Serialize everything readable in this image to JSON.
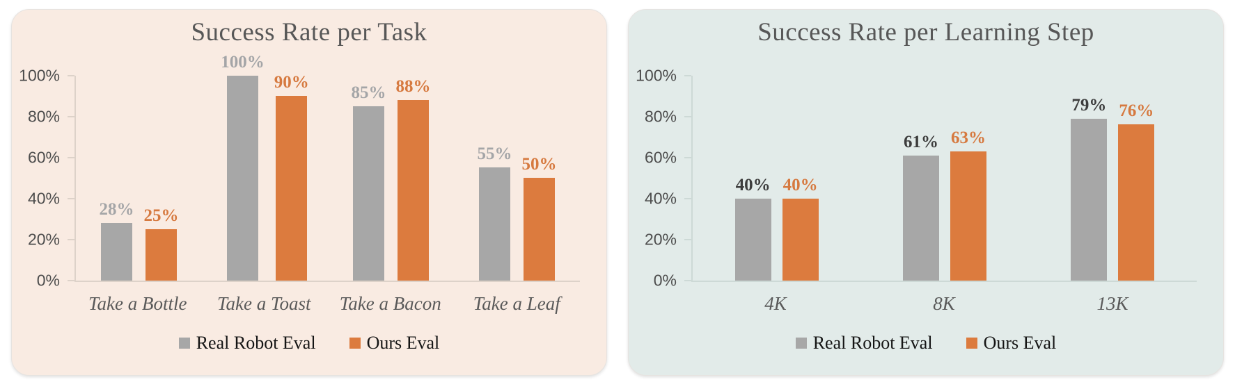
{
  "chart_data": [
    {
      "type": "bar",
      "title": "Success Rate per Task",
      "categories": [
        "Take a Bottle",
        "Take a Toast",
        "Take a Bacon",
        "Take a Leaf"
      ],
      "series": [
        {
          "name": "Real Robot Eval",
          "values": [
            28,
            100,
            85,
            55
          ],
          "bar_color": "#a7a7a7",
          "label_color": "#a4a5a7"
        },
        {
          "name": "Ours Eval",
          "values": [
            25,
            90,
            88,
            50
          ],
          "bar_color": "#dc7b3e",
          "label_color": "#d6793f"
        }
      ],
      "value_suffix": "%",
      "ylim": [
        0,
        100
      ],
      "yticks": [
        0,
        20,
        40,
        60,
        80,
        100
      ],
      "ytick_labels": [
        "0%",
        "20%",
        "40%",
        "60%",
        "80%",
        "100%"
      ],
      "grid": false,
      "legend_position": "bottom",
      "panel_background": "#f9ebe2",
      "axis_color": "#ddd2c9",
      "title_color": "#575757",
      "category_color": "#595959"
    },
    {
      "type": "bar",
      "title": "Success Rate per Learning Step",
      "categories": [
        "4K",
        "8K",
        "13K"
      ],
      "series": [
        {
          "name": "Real Robot Eval",
          "values": [
            40,
            61,
            79
          ],
          "bar_color": "#a7a7a7",
          "label_color": "#3d3d3d"
        },
        {
          "name": "Ours Eval",
          "values": [
            40,
            63,
            76
          ],
          "bar_color": "#dc7b3e",
          "label_color": "#d6793f"
        }
      ],
      "value_suffix": "%",
      "ylim": [
        0,
        100
      ],
      "yticks": [
        0,
        20,
        40,
        60,
        80,
        100
      ],
      "ytick_labels": [
        "0%",
        "20%",
        "40%",
        "60%",
        "80%",
        "100%"
      ],
      "grid": false,
      "legend_position": "bottom",
      "panel_background": "#e2ebe9",
      "axis_color": "#cdd9d6",
      "title_color": "#575757",
      "category_color": "#595959"
    }
  ]
}
